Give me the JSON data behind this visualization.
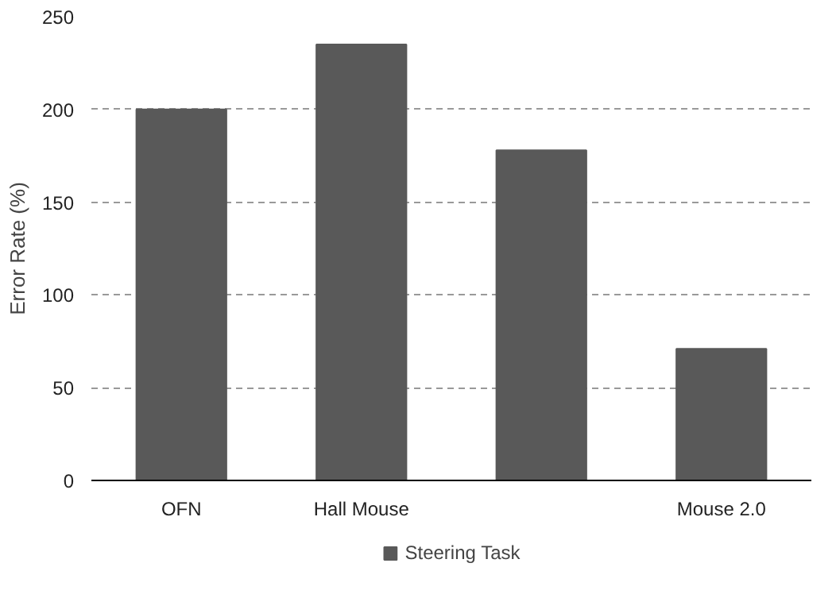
{
  "chart_data": {
    "type": "bar",
    "ylabel": "Error Rate (%)",
    "categories": [
      "OFN",
      "Hall Mouse",
      null,
      "Mouse 2.0"
    ],
    "series": [
      {
        "name": "Steering Task",
        "color": "#595959",
        "values": [
          200,
          235,
          178,
          71
        ]
      }
    ],
    "ylim": [
      0,
      250
    ],
    "yticks": [
      0,
      50,
      100,
      150,
      200,
      250
    ],
    "grid": "y",
    "legend": "bottom"
  }
}
